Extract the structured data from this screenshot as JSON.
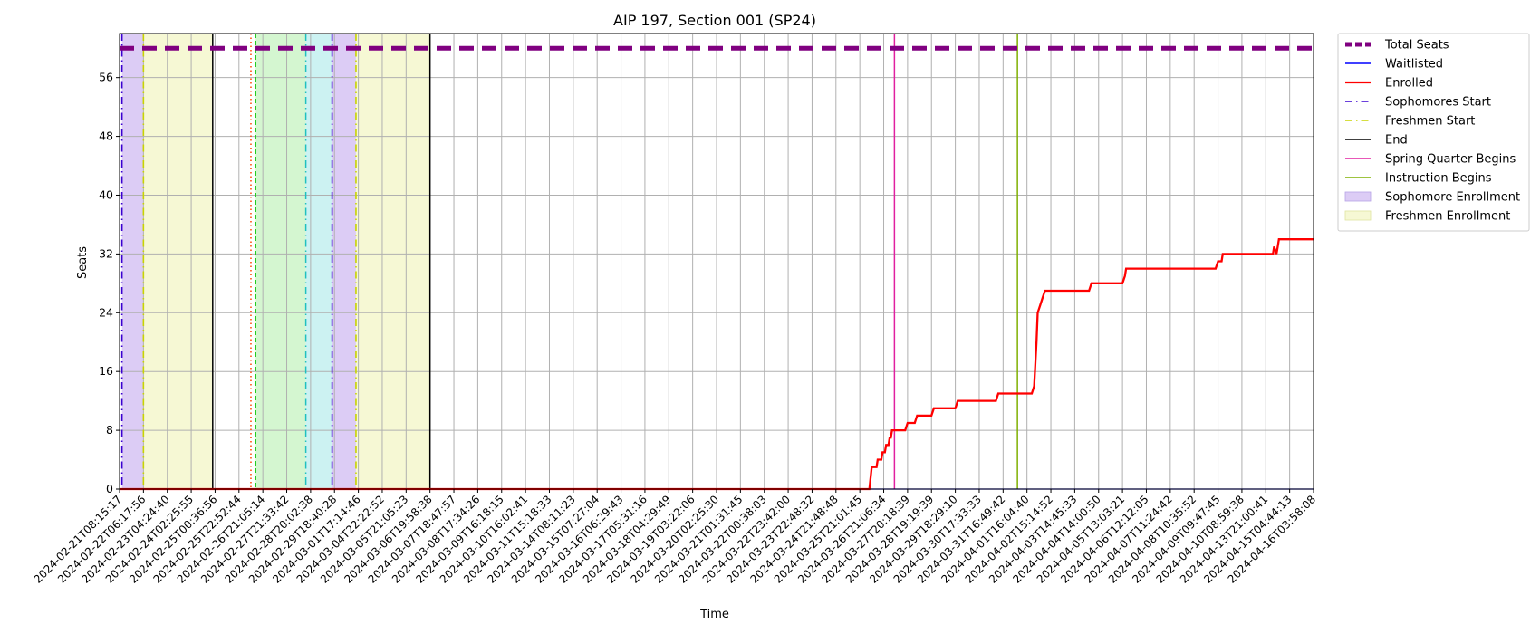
{
  "chart_data": {
    "type": "line",
    "title": "AIP 197, Section 001 (SP24)",
    "xlabel": "Time",
    "ylabel": "Seats",
    "ylim": [
      0,
      62
    ],
    "yticks": [
      0,
      8,
      16,
      24,
      32,
      40,
      48,
      56
    ],
    "grid": true,
    "legend_position": "outside-right",
    "x_tick_labels": [
      "2024-02-21T08:15:17",
      "2024-02-22T06:17:56",
      "2024-02-23T04:24:40",
      "2024-02-24T02:25:55",
      "2024-02-25T00:36:56",
      "2024-02-25T22:52:44",
      "2024-02-26T21:05:14",
      "2024-02-27T21:33:42",
      "2024-02-28T20:02:38",
      "2024-02-29T18:40:28",
      "2024-03-01T17:14:46",
      "2024-03-04T22:22:52",
      "2024-03-05T21:05:23",
      "2024-03-06T19:58:38",
      "2024-03-07T18:47:57",
      "2024-03-08T17:34:26",
      "2024-03-09T16:18:15",
      "2024-03-10T16:02:41",
      "2024-03-11T15:18:33",
      "2024-03-14T08:11:23",
      "2024-03-15T07:27:04",
      "2024-03-16T06:29:43",
      "2024-03-17T05:31:16",
      "2024-03-18T04:29:49",
      "2024-03-19T03:22:06",
      "2024-03-20T02:25:30",
      "2024-03-21T01:31:45",
      "2024-03-22T00:38:03",
      "2024-03-22T23:42:00",
      "2024-03-23T22:48:32",
      "2024-03-24T21:48:48",
      "2024-03-25T21:01:45",
      "2024-03-26T21:06:34",
      "2024-03-27T20:18:39",
      "2024-03-28T19:19:39",
      "2024-03-29T18:29:10",
      "2024-03-30T17:33:33",
      "2024-03-31T16:49:42",
      "2024-04-01T16:04:40",
      "2024-04-02T15:14:52",
      "2024-04-03T14:45:33",
      "2024-04-04T14:00:50",
      "2024-04-05T13:03:21",
      "2024-04-06T12:12:05",
      "2024-04-07T11:24:42",
      "2024-04-08T10:35:52",
      "2024-04-09T09:47:45",
      "2024-04-10T08:59:38",
      "2024-04-13T21:00:41",
      "2024-04-15T04:44:13",
      "2024-04-16T03:58:08"
    ],
    "total_seats": 60,
    "series": [
      {
        "name": "Total Seats",
        "color": "#800080",
        "style": "dashed-thick"
      },
      {
        "name": "Waitlisted",
        "color": "#0000ff",
        "style": "solid",
        "points": [
          [
            0,
            0
          ],
          [
            50,
            0
          ]
        ]
      },
      {
        "name": "Enrolled",
        "color": "#ff0000",
        "style": "solid-thick",
        "points": [
          [
            0,
            0
          ],
          [
            31.4,
            0
          ],
          [
            31.5,
            3
          ],
          [
            31.7,
            3
          ],
          [
            31.75,
            4
          ],
          [
            31.9,
            4
          ],
          [
            31.95,
            5
          ],
          [
            32.05,
            5
          ],
          [
            32.1,
            6
          ],
          [
            32.2,
            6
          ],
          [
            32.25,
            7
          ],
          [
            32.3,
            7
          ],
          [
            32.35,
            8
          ],
          [
            32.9,
            8
          ],
          [
            33.0,
            9
          ],
          [
            33.3,
            9
          ],
          [
            33.4,
            10
          ],
          [
            34.0,
            10
          ],
          [
            34.1,
            11
          ],
          [
            35.0,
            11
          ],
          [
            35.1,
            12
          ],
          [
            36.7,
            12
          ],
          [
            36.8,
            13
          ],
          [
            38.2,
            13
          ],
          [
            38.3,
            14
          ],
          [
            38.35,
            17
          ],
          [
            38.4,
            20
          ],
          [
            38.45,
            24
          ],
          [
            38.55,
            25
          ],
          [
            38.65,
            26
          ],
          [
            38.75,
            27
          ],
          [
            40.6,
            27
          ],
          [
            40.7,
            28
          ],
          [
            42.0,
            28
          ],
          [
            42.1,
            29
          ],
          [
            42.15,
            30
          ],
          [
            45.9,
            30
          ],
          [
            46.0,
            31
          ],
          [
            46.15,
            31
          ],
          [
            46.2,
            32
          ],
          [
            48.3,
            32
          ],
          [
            48.35,
            33
          ],
          [
            48.45,
            32
          ],
          [
            48.5,
            33
          ],
          [
            48.55,
            34
          ],
          [
            50,
            34
          ]
        ]
      }
    ],
    "vertical_lines": [
      {
        "name": "Sophomores Start",
        "color": "#3a00d0",
        "style": "dashdot",
        "x": [
          0.1,
          8.9
        ]
      },
      {
        "name": "Freshmen Start",
        "color": "#c8d400",
        "style": "dashdot",
        "x": [
          1.0,
          9.9
        ]
      },
      {
        "name": "End",
        "color": "#000000",
        "style": "solid",
        "x": [
          3.9,
          13.0
        ]
      },
      {
        "name": "Spring Quarter Begins",
        "color": "#e020a0",
        "style": "solid",
        "x": [
          32.45
        ]
      },
      {
        "name": "Instruction Begins",
        "color": "#7fb000",
        "style": "solid",
        "x": [
          37.6
        ]
      }
    ],
    "extra_lines": [
      {
        "color": "#ff4500",
        "style": "dotted",
        "x": 5.5
      },
      {
        "color": "#22cc22",
        "style": "dashed",
        "x": 5.7
      },
      {
        "color": "#20c0c0",
        "style": "dashdot",
        "x": 7.8
      }
    ],
    "spans": [
      {
        "name": "Sophomore Enrollment",
        "color": "#dcccf5",
        "ranges": [
          [
            0.1,
            1.0
          ],
          [
            8.9,
            9.9
          ]
        ]
      },
      {
        "name": "Freshmen Enrollment",
        "color": "#f6f8d4",
        "ranges": [
          [
            1.0,
            3.9
          ],
          [
            9.9,
            13.0
          ]
        ]
      },
      {
        "color": "#d4f6d0",
        "ranges": [
          [
            5.7,
            7.8
          ]
        ]
      },
      {
        "color": "#ccf2f2",
        "ranges": [
          [
            7.8,
            8.9
          ]
        ]
      }
    ],
    "legend": [
      {
        "label": "Total Seats",
        "color": "#800080",
        "kind": "dashed-thick"
      },
      {
        "label": "Waitlisted",
        "color": "#0000ff",
        "kind": "solid"
      },
      {
        "label": "Enrolled",
        "color": "#ff0000",
        "kind": "solid-thick"
      },
      {
        "label": "Sophomores Start",
        "color": "#3a00d0",
        "kind": "dashdot"
      },
      {
        "label": "Freshmen Start",
        "color": "#c8d400",
        "kind": "dashdot"
      },
      {
        "label": "End",
        "color": "#000000",
        "kind": "solid"
      },
      {
        "label": "Spring Quarter Begins",
        "color": "#e020a0",
        "kind": "solid"
      },
      {
        "label": "Instruction Begins",
        "color": "#7fb000",
        "kind": "solid"
      },
      {
        "label": "Sophomore Enrollment",
        "color": "#dcccf5",
        "kind": "patch"
      },
      {
        "label": "Freshmen Enrollment",
        "color": "#f6f8d4",
        "kind": "patch"
      }
    ]
  }
}
